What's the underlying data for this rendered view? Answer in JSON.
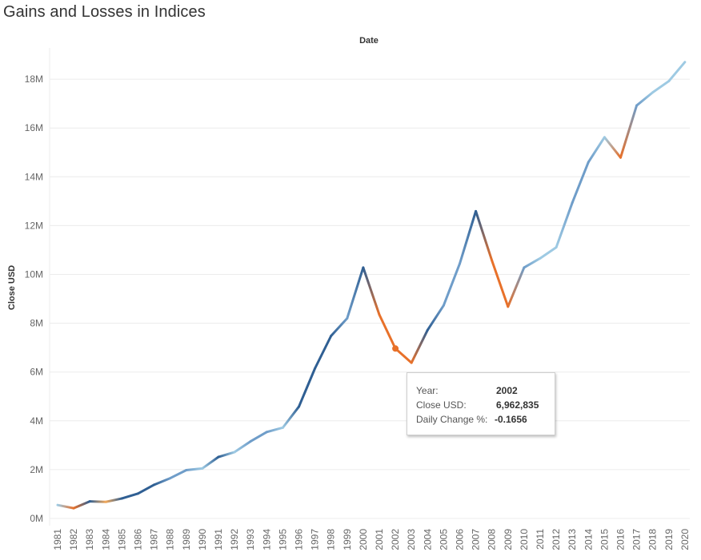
{
  "chart_data": {
    "type": "line",
    "title": "Gains and Losses in Indices",
    "xlabel": "Date",
    "ylabel": "Close USD",
    "x": [
      "1981",
      "1982",
      "1983",
      "1984",
      "1985",
      "1986",
      "1987",
      "1988",
      "1989",
      "1990",
      "1991",
      "1992",
      "1993",
      "1994",
      "1995",
      "1996",
      "1997",
      "1998",
      "1999",
      "2000",
      "2001",
      "2002",
      "2003",
      "2004",
      "2005",
      "2006",
      "2007",
      "2008",
      "2009",
      "2010",
      "2011",
      "2012",
      "2013",
      "2014",
      "2015",
      "2016",
      "2017",
      "2018",
      "2019",
      "2020"
    ],
    "values": [
      550000,
      420000,
      700000,
      680000,
      820000,
      1020000,
      1380000,
      1650000,
      1980000,
      2050000,
      2520000,
      2720000,
      3160000,
      3540000,
      3720000,
      4580000,
      6150000,
      7480000,
      8200000,
      10280000,
      8350000,
      6962835,
      6380000,
      7720000,
      8730000,
      10440000,
      12590000,
      10570000,
      8680000,
      10280000,
      10660000,
      11110000,
      12940000,
      14600000,
      15620000,
      14790000,
      16920000,
      17460000,
      17920000,
      18700000
    ],
    "daily_change_color_scale": {
      "negative": "#e8712a",
      "zero": "#6f9dc9",
      "positive_strong": "#2f5f93",
      "positive_weak": "#9ecae3",
      "slight_negative": "#f2a85a"
    },
    "y_ticks": [
      "0M",
      "2M",
      "4M",
      "6M",
      "8M",
      "10M",
      "12M",
      "14M",
      "16M",
      "18M"
    ],
    "ylim": [
      0,
      19200000
    ],
    "grid": true,
    "highlight_index": 21
  },
  "tooltip": {
    "year_label": "Year:",
    "year_value": "2002",
    "close_label": "Close USD:",
    "close_value": "6,962,835",
    "change_label": "Daily Change %:",
    "change_value": "-0.1656"
  }
}
